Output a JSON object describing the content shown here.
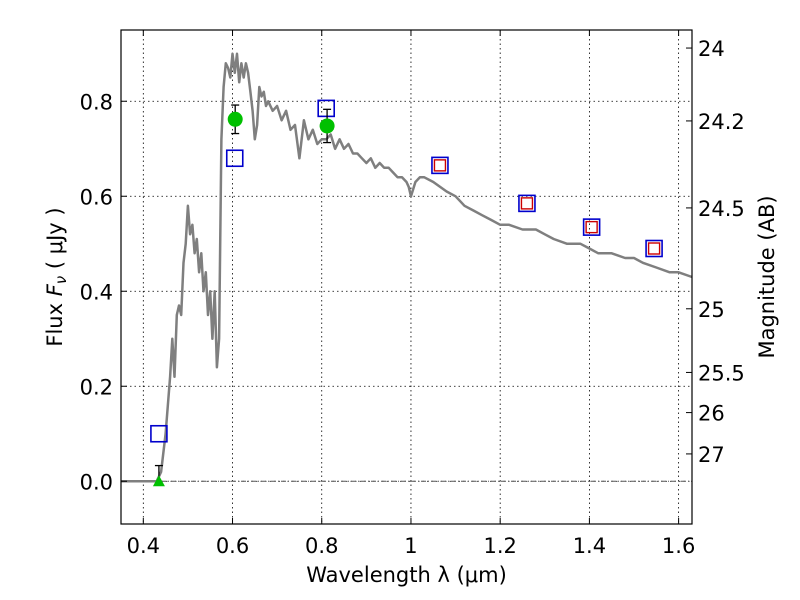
{
  "chart_data": {
    "type": "scatter",
    "xlabel": "Wavelength  λ (μm)",
    "ylabel_left": "Flux  F_ν  ( μJy )",
    "ylabel_left_parts": {
      "prefix": "Flux  ",
      "var": "F",
      "sub": "ν",
      "suffix": "  ( μJy )"
    },
    "ylabel_right": "Magnitude (AB)",
    "xlim": [
      0.35,
      1.63
    ],
    "ylim": [
      -0.09,
      0.95
    ],
    "grid": true,
    "x_ticks": [
      {
        "value": 0.4,
        "label": "0.4"
      },
      {
        "value": 0.6,
        "label": "0.6"
      },
      {
        "value": 0.8,
        "label": "0.8"
      },
      {
        "value": 1.0,
        "label": "1"
      },
      {
        "value": 1.2,
        "label": "1.2"
      },
      {
        "value": 1.4,
        "label": "1.4"
      },
      {
        "value": 1.6,
        "label": "1.6"
      }
    ],
    "y_ticks": [
      {
        "value": 0.0,
        "label": "0.0"
      },
      {
        "value": 0.2,
        "label": "0.2"
      },
      {
        "value": 0.4,
        "label": "0.4"
      },
      {
        "value": 0.6,
        "label": "0.6"
      },
      {
        "value": 0.8,
        "label": "0.8"
      }
    ],
    "mag_ticks": [
      {
        "mag": 24,
        "label": "24"
      },
      {
        "mag": 24.2,
        "label": "24.2"
      },
      {
        "mag": 24.5,
        "label": "24.5"
      },
      {
        "mag": 25,
        "label": "25"
      },
      {
        "mag": 25.5,
        "label": "25.5"
      },
      {
        "mag": 26,
        "label": "26"
      },
      {
        "mag": 27,
        "label": "27"
      }
    ],
    "mag_zero_point": 23.9,
    "zero_line_y": 0.0,
    "series": [
      {
        "name": "model_spectrum",
        "kind": "line",
        "color": "#7f7f7f",
        "x": [
          0.35,
          0.43,
          0.44,
          0.45,
          0.46,
          0.465,
          0.47,
          0.475,
          0.48,
          0.485,
          0.49,
          0.495,
          0.5,
          0.505,
          0.51,
          0.515,
          0.52,
          0.525,
          0.53,
          0.535,
          0.54,
          0.545,
          0.55,
          0.555,
          0.56,
          0.565,
          0.57,
          0.575,
          0.58,
          0.585,
          0.59,
          0.595,
          0.6,
          0.605,
          0.61,
          0.615,
          0.62,
          0.625,
          0.63,
          0.635,
          0.64,
          0.645,
          0.65,
          0.655,
          0.66,
          0.665,
          0.67,
          0.675,
          0.68,
          0.69,
          0.7,
          0.71,
          0.72,
          0.73,
          0.74,
          0.75,
          0.76,
          0.77,
          0.78,
          0.79,
          0.8,
          0.81,
          0.82,
          0.83,
          0.84,
          0.85,
          0.86,
          0.87,
          0.88,
          0.89,
          0.9,
          0.91,
          0.92,
          0.93,
          0.94,
          0.95,
          0.96,
          0.97,
          0.98,
          0.99,
          0.995,
          1.0,
          1.01,
          1.02,
          1.03,
          1.05,
          1.08,
          1.1,
          1.12,
          1.14,
          1.16,
          1.18,
          1.2,
          1.22,
          1.25,
          1.28,
          1.3,
          1.32,
          1.35,
          1.38,
          1.4,
          1.42,
          1.45,
          1.48,
          1.5,
          1.52,
          1.55,
          1.58,
          1.6,
          1.63
        ],
        "y": [
          0.0,
          0.0,
          0.02,
          0.1,
          0.22,
          0.3,
          0.22,
          0.35,
          0.37,
          0.35,
          0.46,
          0.5,
          0.58,
          0.52,
          0.54,
          0.48,
          0.51,
          0.44,
          0.48,
          0.4,
          0.44,
          0.35,
          0.4,
          0.3,
          0.4,
          0.24,
          0.3,
          0.72,
          0.83,
          0.88,
          0.87,
          0.85,
          0.9,
          0.86,
          0.9,
          0.84,
          0.88,
          0.85,
          0.88,
          0.86,
          0.82,
          0.78,
          0.72,
          0.75,
          0.83,
          0.81,
          0.82,
          0.79,
          0.8,
          0.78,
          0.79,
          0.76,
          0.78,
          0.74,
          0.75,
          0.68,
          0.76,
          0.72,
          0.74,
          0.71,
          0.72,
          0.72,
          0.73,
          0.7,
          0.72,
          0.7,
          0.71,
          0.69,
          0.69,
          0.68,
          0.67,
          0.68,
          0.66,
          0.67,
          0.66,
          0.66,
          0.65,
          0.64,
          0.64,
          0.63,
          0.62,
          0.6,
          0.63,
          0.64,
          0.64,
          0.63,
          0.61,
          0.6,
          0.58,
          0.57,
          0.56,
          0.55,
          0.54,
          0.54,
          0.53,
          0.53,
          0.52,
          0.51,
          0.5,
          0.5,
          0.49,
          0.48,
          0.48,
          0.47,
          0.47,
          0.46,
          0.45,
          0.44,
          0.44,
          0.43
        ]
      },
      {
        "name": "model_photometry",
        "kind": "open_square",
        "color": "#0000cc",
        "x": [
          0.435,
          0.605,
          0.81,
          1.065,
          1.26,
          1.405,
          1.545
        ],
        "y": [
          0.1,
          0.68,
          0.785,
          0.665,
          0.585,
          0.535,
          0.49
        ]
      },
      {
        "name": "photometry_red",
        "kind": "small_open_square",
        "color": "#cc0000",
        "x": [
          1.065,
          1.26,
          1.405,
          1.545
        ],
        "y": [
          0.665,
          0.585,
          0.535,
          0.49
        ]
      },
      {
        "name": "observed_flux",
        "kind": "filled_circle",
        "color": "#00c000",
        "x": [
          0.606,
          0.812
        ],
        "y": [
          0.762,
          0.748
        ],
        "yerr": [
          0.03,
          0.035
        ]
      },
      {
        "name": "upper_limit",
        "kind": "triangle_with_errorbar",
        "color": "#00c000",
        "x": [
          0.435
        ],
        "y": [
          0.0
        ],
        "err_high": [
          0.033
        ]
      }
    ]
  }
}
